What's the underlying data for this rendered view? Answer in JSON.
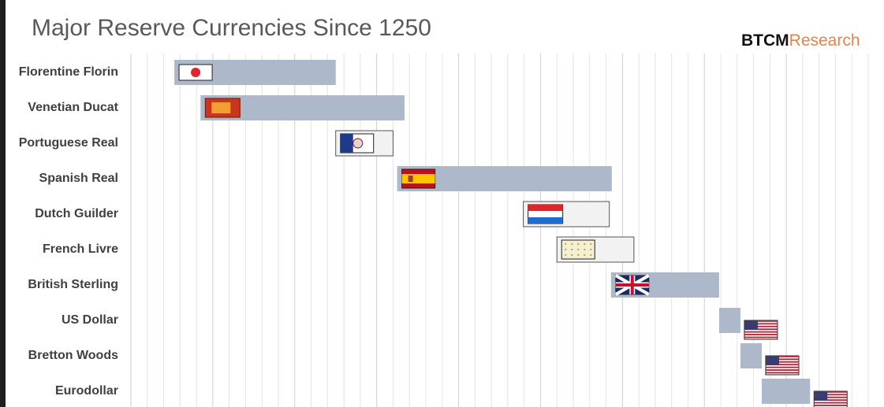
{
  "chart_data": {
    "type": "timeline",
    "title": "Major Reserve Currencies Since 1250",
    "brand": [
      "BTCM",
      "Research"
    ],
    "categories": [
      "Florentine Florin",
      "Venetian Ducat",
      "Portuguese Real",
      "Spanish Real",
      "Dutch Guilder",
      "French Livre",
      "British Sterling",
      "US Dollar",
      "Bretton Woods",
      "Eurodollar"
    ],
    "starts": [
      1253,
      1285,
      1450,
      1525,
      1679,
      1720,
      1786,
      1918,
      1944,
      1970
    ],
    "ends": [
      1450,
      1534,
      1520,
      1787,
      1784,
      1814,
      1918,
      1944,
      1970,
      2029
    ],
    "colors": [
      "#adb9ca",
      "#adb9ca",
      "#f2f2f2",
      "#adb9ca",
      "#f2f2f2",
      "#f2f2f2",
      "#adb9ca",
      "#adb9ca",
      "#adb9ca",
      "#adb9ca"
    ],
    "xlim": [
      1200,
      2100
    ],
    "grid": true,
    "xgrid_minor": [
      1220,
      1240,
      1260,
      1280,
      1320,
      1340,
      1360,
      1380,
      1420,
      1440,
      1460,
      1480,
      1520,
      1540,
      1560,
      1580,
      1620,
      1640,
      1660,
      1680,
      1720,
      1740,
      1760,
      1780,
      1820,
      1840,
      1860,
      1880,
      1920,
      1940,
      1960,
      1980,
      2020,
      2040,
      2060,
      2080,
      2100
    ],
    "xgrid_major": [
      1200,
      1300,
      1400,
      1500,
      1600,
      1700,
      1800,
      1900,
      2000
    ]
  }
}
